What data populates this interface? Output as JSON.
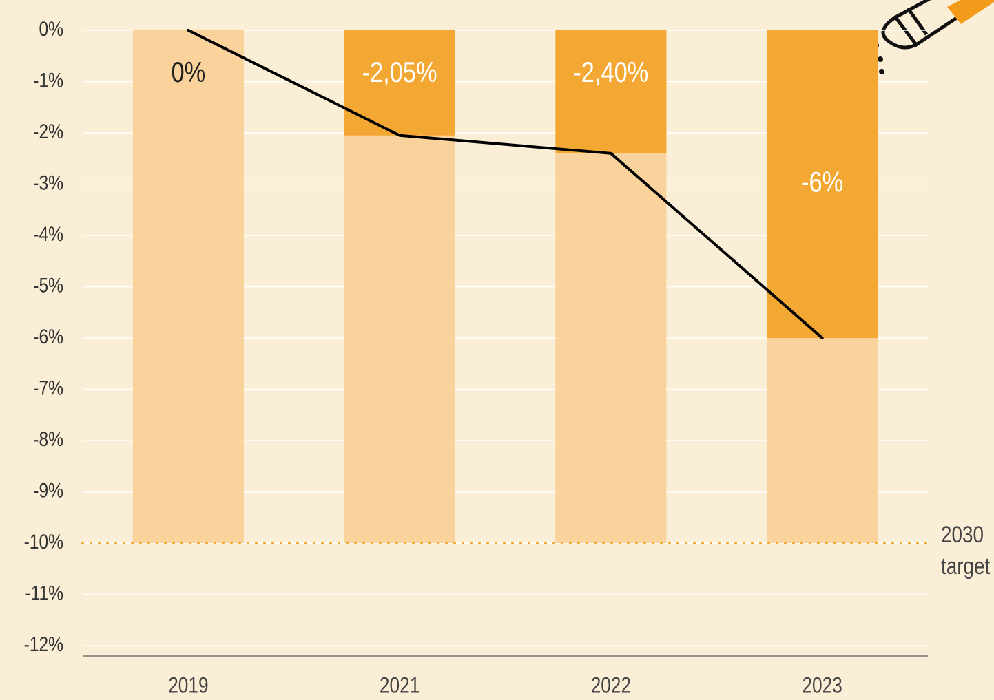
{
  "chart_data": {
    "type": "bar",
    "categories": [
      "2019",
      "2021",
      "2022",
      "2023"
    ],
    "values": [
      0,
      -2.05,
      -2.4,
      -6
    ],
    "value_labels": [
      "0%",
      "-2,05%",
      "-2,40%",
      "-6%"
    ],
    "color": "#f2a833",
    "background_color": "#f9d39b",
    "line_color": "#000000",
    "target": -10,
    "target_color": "#f2a833",
    "target_label": [
      "2030",
      "target"
    ],
    "ylim": [
      -12.2,
      0
    ],
    "yticks": [
      {
        "value": 0,
        "label": "0%"
      },
      {
        "value": -1,
        "label": "-1%"
      },
      {
        "value": -2,
        "label": "-2%"
      },
      {
        "value": -3,
        "label": "-3%"
      },
      {
        "value": -4,
        "label": "-4%"
      },
      {
        "value": -5,
        "label": "-5%"
      },
      {
        "value": -6,
        "label": "-6%"
      },
      {
        "value": -7,
        "label": "-7%"
      },
      {
        "value": -8,
        "label": "-8%"
      },
      {
        "value": -9,
        "label": "-9%"
      },
      {
        "value": -10,
        "label": "-10%"
      },
      {
        "value": -11,
        "label": "-11%"
      },
      {
        "value": -12,
        "label": "-12%"
      }
    ],
    "grid": true
  }
}
